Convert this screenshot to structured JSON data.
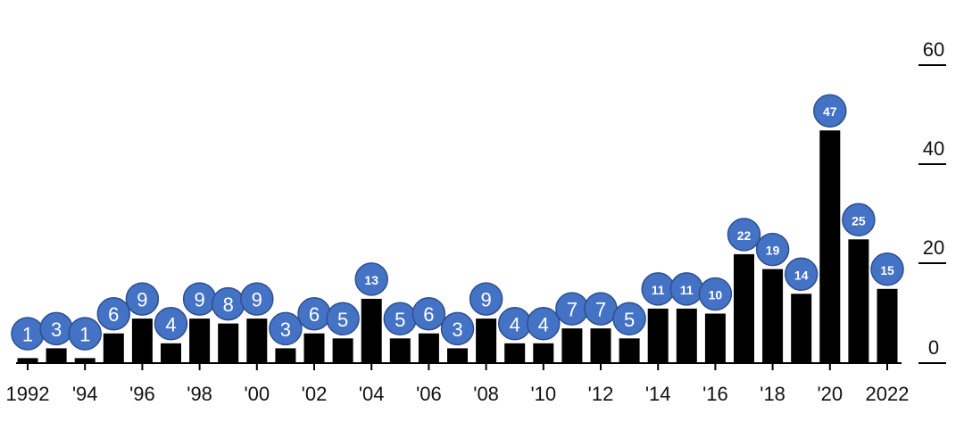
{
  "chart_data": {
    "type": "bar",
    "x": [
      1992,
      1993,
      1994,
      1995,
      1996,
      1997,
      1998,
      1999,
      2000,
      2001,
      2002,
      2003,
      2004,
      2005,
      2006,
      2007,
      2008,
      2009,
      2010,
      2011,
      2012,
      2013,
      2014,
      2015,
      2016,
      2017,
      2018,
      2019,
      2020,
      2021,
      2022
    ],
    "values": [
      1,
      3,
      1,
      6,
      9,
      4,
      9,
      8,
      9,
      3,
      6,
      5,
      13,
      5,
      6,
      3,
      9,
      4,
      4,
      7,
      7,
      5,
      11,
      11,
      10,
      22,
      19,
      14,
      47,
      25,
      15
    ],
    "ylim": [
      0,
      60
    ],
    "y_ticks": [
      "0",
      "20",
      "40",
      "60"
    ],
    "y_tick_values": [
      0,
      20,
      40,
      60
    ],
    "x_tick_labels": [
      {
        "x": 1992,
        "label": "1992"
      },
      {
        "x": 1994,
        "label": "'94"
      },
      {
        "x": 1996,
        "label": "'96"
      },
      {
        "x": 1998,
        "label": "'98"
      },
      {
        "x": 2000,
        "label": "'00"
      },
      {
        "x": 2002,
        "label": "'02"
      },
      {
        "x": 2004,
        "label": "'04"
      },
      {
        "x": 2006,
        "label": "'06"
      },
      {
        "x": 2008,
        "label": "'08"
      },
      {
        "x": 2010,
        "label": "'10"
      },
      {
        "x": 2012,
        "label": "'12"
      },
      {
        "x": 2014,
        "label": "'14"
      },
      {
        "x": 2016,
        "label": "'16"
      },
      {
        "x": 2018,
        "label": "'18"
      },
      {
        "x": 2020,
        "label": "'20"
      },
      {
        "x": 2022,
        "label": "2022"
      }
    ],
    "y_axis_position": "right",
    "grid": false,
    "colors": {
      "bar": "#000000",
      "badge": "#4472c4",
      "badge_text": "#ffffff"
    }
  }
}
